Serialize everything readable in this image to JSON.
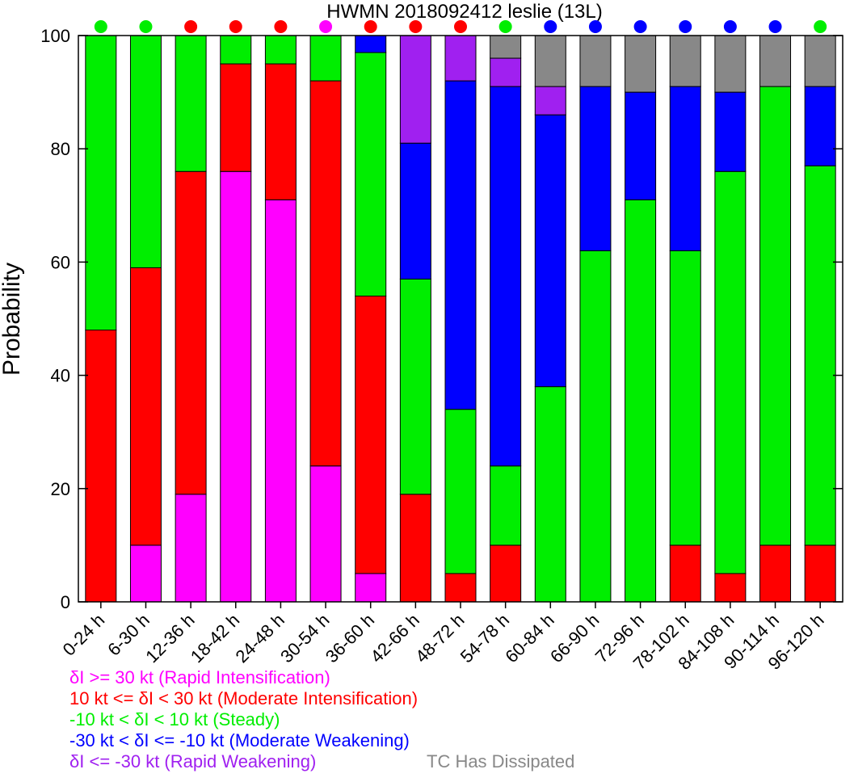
{
  "chart_data": {
    "type": "bar",
    "stacked": true,
    "title": "HWMN 2018092412 leslie (13L)",
    "xlabel": "",
    "ylabel": "Probability",
    "ylim": [
      0,
      100
    ],
    "yticks": [
      0,
      20,
      40,
      60,
      80,
      100
    ],
    "grid": false,
    "categories": [
      "0-24 h",
      "6-30 h",
      "12-36 h",
      "18-42 h",
      "24-48 h",
      "30-54 h",
      "36-60 h",
      "42-66 h",
      "48-72 h",
      "54-78 h",
      "60-84 h",
      "66-90 h",
      "72-96 h",
      "78-102 h",
      "84-108 h",
      "90-114 h",
      "96-120 h"
    ],
    "series": [
      {
        "key": "ri",
        "color": "#ff00ff",
        "values": [
          0,
          10,
          19,
          76,
          71,
          24,
          5,
          0,
          0,
          0,
          0,
          0,
          0,
          0,
          0,
          0,
          0
        ]
      },
      {
        "key": "mi",
        "color": "#ff0000",
        "values": [
          48,
          49,
          57,
          19,
          24,
          68,
          49,
          19,
          5,
          10,
          0,
          0,
          0,
          10,
          5,
          10,
          10
        ]
      },
      {
        "key": "st",
        "color": "#00ee00",
        "values": [
          52,
          41,
          24,
          5,
          5,
          8,
          43,
          38,
          29,
          14,
          38,
          62,
          71,
          52,
          71,
          81,
          67
        ]
      },
      {
        "key": "mw",
        "color": "#0000ff",
        "values": [
          0,
          0,
          0,
          0,
          0,
          0,
          3,
          24,
          58,
          67,
          48,
          29,
          19,
          29,
          14,
          0,
          14
        ]
      },
      {
        "key": "rw",
        "color": "#a020f0",
        "values": [
          0,
          0,
          0,
          0,
          0,
          0,
          0,
          19,
          8,
          5,
          5,
          0,
          0,
          0,
          0,
          0,
          0
        ]
      },
      {
        "key": "dis",
        "color": "#888888",
        "values": [
          0,
          0,
          0,
          0,
          0,
          0,
          0,
          0,
          0,
          4,
          9,
          9,
          10,
          9,
          10,
          9,
          9
        ]
      }
    ],
    "dot_colors": [
      "#00ee00",
      "#00ee00",
      "#ff0000",
      "#ff0000",
      "#ff0000",
      "#ff00ff",
      "#ff0000",
      "#ff0000",
      "#ff0000",
      "#00ee00",
      "#0000ff",
      "#0000ff",
      "#0000ff",
      "#0000ff",
      "#0000ff",
      "#0000ff",
      "#00ee00"
    ],
    "legend": [
      {
        "label": "δI >= 30 kt (Rapid Intensification)",
        "color": "#ff00ff"
      },
      {
        "label": "10 kt <= δI < 30 kt (Moderate Intensification)",
        "color": "#ff0000"
      },
      {
        "label": "-10 kt < δI < 10 kt (Steady)",
        "color": "#00ee00"
      },
      {
        "label": "-30 kt < δI <= -10 kt (Moderate Weakening)",
        "color": "#0000ff"
      },
      {
        "label": "δI <= -30 kt (Rapid Weakening)",
        "color": "#a020f0"
      }
    ],
    "legend_extra": {
      "label": "TC Has Dissipated",
      "color": "#888888"
    }
  }
}
